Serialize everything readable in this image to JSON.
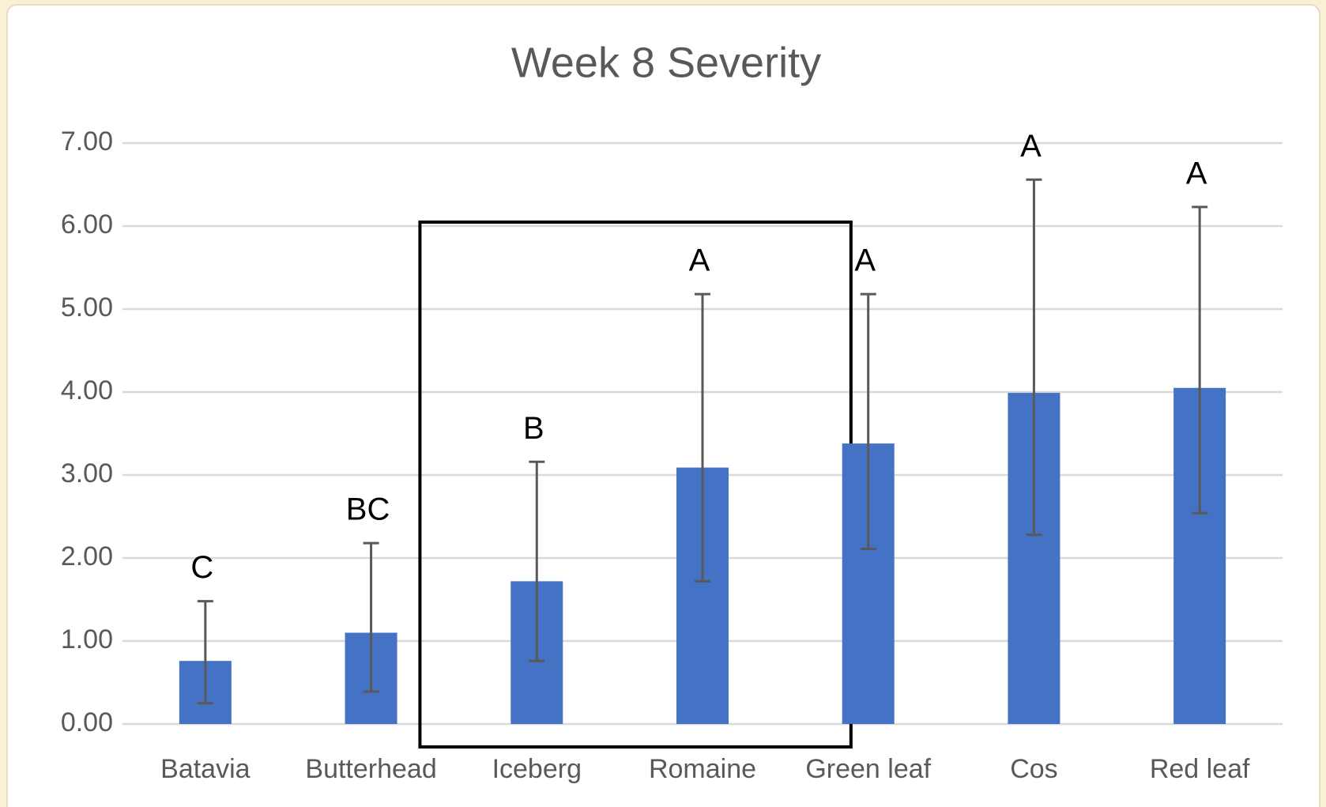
{
  "chart_data": {
    "type": "bar",
    "title": "Week 8 Severity",
    "categories": [
      "Batavia",
      "Butterhead",
      "Iceberg",
      "Romaine",
      "Green leaf",
      "Cos",
      "Red leaf"
    ],
    "values": [
      0.76,
      1.1,
      1.72,
      3.09,
      3.38,
      3.99,
      4.05
    ],
    "error_plus": [
      0.72,
      1.08,
      1.44,
      2.09,
      1.8,
      2.57,
      2.18
    ],
    "error_minus": [
      0.51,
      0.71,
      0.96,
      1.37,
      1.27,
      1.71,
      1.51
    ],
    "annotations": [
      "C",
      "BC",
      "B",
      "A",
      "A",
      "A",
      "A"
    ],
    "color": "#4472c4",
    "ylim": [
      0,
      7
    ],
    "yticks": [
      {
        "value": 0,
        "label": "0.00"
      },
      {
        "value": 1,
        "label": "1.00"
      },
      {
        "value": 2,
        "label": "2.00"
      },
      {
        "value": 3,
        "label": "3.00"
      },
      {
        "value": 4,
        "label": "4.00"
      },
      {
        "value": 5,
        "label": "5.00"
      },
      {
        "value": 6,
        "label": "6.00"
      },
      {
        "value": 7,
        "label": "7.00"
      }
    ],
    "grid": true
  }
}
